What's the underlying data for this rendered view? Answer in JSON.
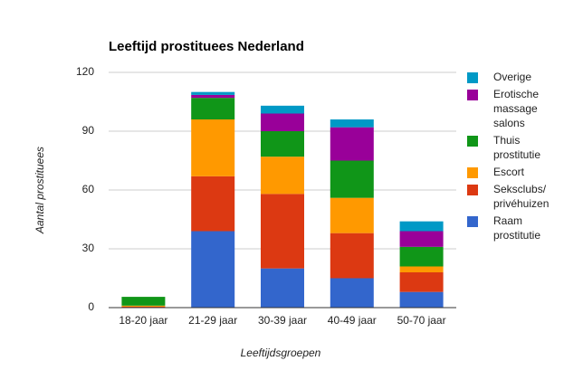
{
  "chart_data": {
    "type": "stacked_bar",
    "title": "Leeftijd prostituees Nederland",
    "x_label": "Leeftijdsgroepen",
    "y_label": "Aantal prostituees",
    "categories": [
      "18-20 jaar",
      "21-29 jaar",
      "30-39 jaar",
      "40-49 jaar",
      "50-70 jaar"
    ],
    "series": [
      {
        "name": "Raam prostitutie",
        "color": "#3366cc",
        "values": [
          0,
          39,
          20,
          15,
          8
        ]
      },
      {
        "name": "Seksclubs/ privéhuizen",
        "color": "#dc3912",
        "values": [
          0.5,
          28,
          38,
          23,
          10
        ]
      },
      {
        "name": "Escort",
        "color": "#ff9900",
        "values": [
          0.5,
          29,
          19,
          18,
          3
        ]
      },
      {
        "name": "Thuis prostitutie",
        "color": "#109618",
        "values": [
          4.5,
          11,
          13,
          19,
          10
        ]
      },
      {
        "name": "Erotische massage salons",
        "color": "#990099",
        "values": [
          0,
          1.5,
          9,
          17,
          8
        ]
      },
      {
        "name": "Overige",
        "color": "#0099c6",
        "values": [
          0,
          1.5,
          4,
          4,
          5
        ]
      }
    ],
    "ylim": [
      0,
      120
    ],
    "yticks": [
      0,
      30,
      60,
      90,
      120
    ],
    "grid": true,
    "legend": "right"
  }
}
